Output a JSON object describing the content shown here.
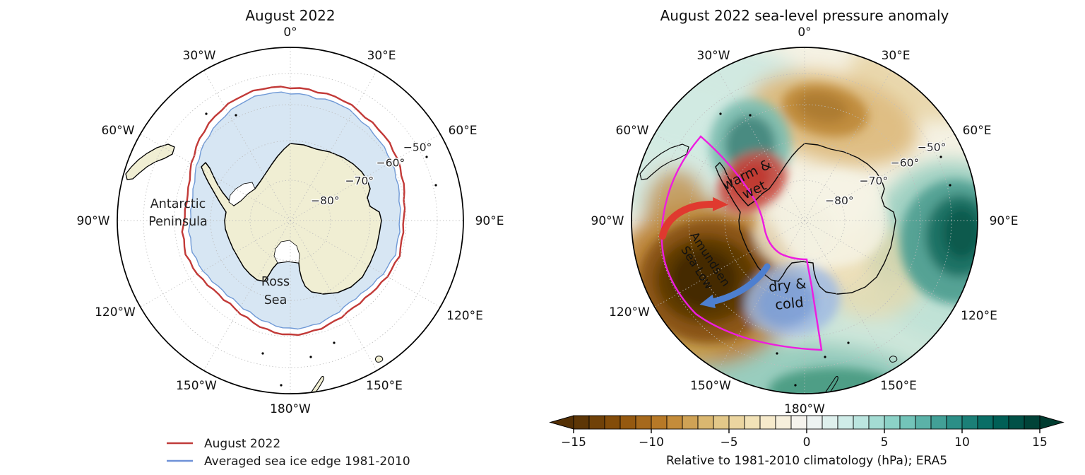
{
  "left_panel": {
    "title": "August 2022",
    "place_labels": {
      "peninsula_line1": "Antarctic",
      "peninsula_line2": "Peninsula",
      "ross_line1": "Ross",
      "ross_line2": "Sea"
    },
    "legend": {
      "items": [
        {
          "label": "August 2022",
          "color": "#c03c3a"
        },
        {
          "label": "Averaged sea ice edge 1981-2010",
          "color": "#6e91d8"
        }
      ]
    },
    "colors": {
      "land": "#f0eed3",
      "ice_fill": "#d7e6f3",
      "ice_edge": "#6f99d6",
      "edge_2022": "#c23a38",
      "coast": "#000000"
    }
  },
  "right_panel": {
    "title": "August 2022 sea-level pressure anomaly",
    "annotations": {
      "warm_line1": "warm &",
      "warm_line2": "wet",
      "asl_line1": "Amundsen",
      "asl_line2": "Sea Low",
      "dry_line1": "dry &",
      "dry_line2": "cold"
    },
    "annotation_colors": {
      "warm_text": "#ffffff",
      "asl_text": "#dcc68c",
      "dry_text": "#abc6ef",
      "sector_outline": "#ee1ce0",
      "arrow_warm": "#e0392f",
      "arrow_cold": "#4d7fd0"
    },
    "colorbar": {
      "caption": "Relative to 1981-2010 climatology (hPa); ERA5",
      "tick_labels": [
        "−15",
        "−10",
        "−5",
        "0",
        "5",
        "10",
        "15"
      ],
      "tick_values": [
        -15,
        -10,
        -5,
        0,
        5,
        10,
        15
      ],
      "range": [
        -15,
        15
      ],
      "n_segments": 30,
      "colormap_stops": [
        "#543005",
        "#8c510a",
        "#bf812d",
        "#dfc27d",
        "#f6e8c3",
        "#f5f5f5",
        "#c7eae5",
        "#80cdc1",
        "#35978f",
        "#01665e",
        "#003c30"
      ]
    }
  },
  "graticule": {
    "longitude_labels": [
      "0°",
      "30°E",
      "60°E",
      "90°E",
      "120°E",
      "150°E",
      "180°W",
      "150°W",
      "120°W",
      "90°W",
      "60°W",
      "30°W"
    ],
    "latitude_labels": [
      "−50°",
      "−60°",
      "−70°",
      "−80°"
    ]
  }
}
